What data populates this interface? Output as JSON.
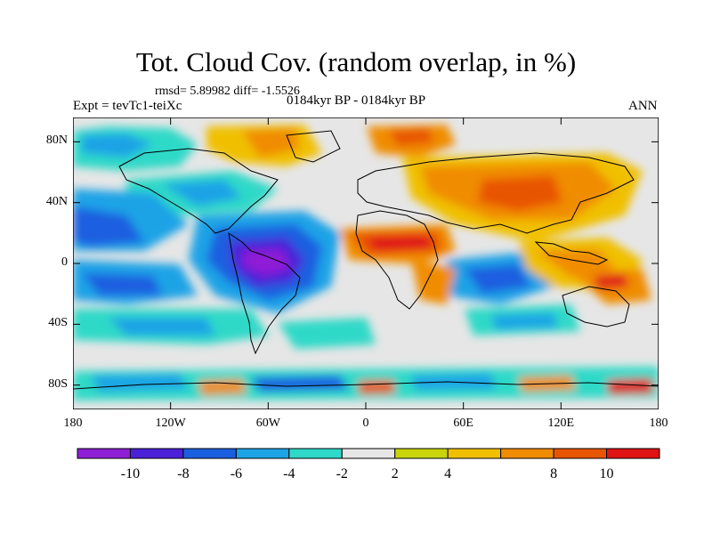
{
  "header": {
    "title": "Tot. Cloud Cov. (random overlap, in %)",
    "stats": "rmsd= 5.89982 diff= -1.5526",
    "experiment": "Expt = tevTc1-teiXc",
    "period": "0184kyr BP - 0184kyr BP",
    "season": "ANN"
  },
  "axes": {
    "y_ticks": [
      {
        "label": "80N",
        "lat": 75
      },
      {
        "label": "40N",
        "lat": 37.5
      },
      {
        "label": "0",
        "lat": 0
      },
      {
        "label": "40S",
        "lat": -37.5
      },
      {
        "label": "80S",
        "lat": -75
      }
    ],
    "x_ticks": [
      {
        "label": "180",
        "lon": -180
      },
      {
        "label": "120W",
        "lon": -120
      },
      {
        "label": "60W",
        "lon": -60
      },
      {
        "label": "0",
        "lon": 0
      },
      {
        "label": "60E",
        "lon": 60
      },
      {
        "label": "120E",
        "lon": 120
      },
      {
        "label": "180",
        "lon": 180
      }
    ]
  },
  "colorbar": {
    "colors": [
      "#8f1fd6",
      "#4a20d8",
      "#1b5fe0",
      "#1da3e6",
      "#2fd9c8",
      "#e6e6e6",
      "#c9d40a",
      "#f0c000",
      "#f08c00",
      "#e85500",
      "#e01414"
    ],
    "labels": [
      "-10",
      "-8",
      "-6",
      "-4",
      "-2",
      "2",
      "4",
      "8",
      "10"
    ]
  },
  "chart_data": {
    "type": "heatmap",
    "variable": "Tot. Cloud Cov. (random overlap, in %)",
    "projection": "cylindrical equidistant",
    "lon_range": [
      -180,
      180
    ],
    "lat_range": [
      -90,
      90
    ],
    "levels": [
      -10,
      -8,
      -6,
      -4,
      -2,
      2,
      4,
      8,
      10
    ],
    "anomaly_regions": [
      {
        "lon": [
          -40,
          30
        ],
        "lat": [
          5,
          25
        ],
        "value": 10
      },
      {
        "lon": [
          60,
          110
        ],
        "lat": [
          25,
          50
        ],
        "value": 6
      },
      {
        "lon": [
          -100,
          -40
        ],
        "lat": [
          -15,
          15
        ],
        "value": -10
      },
      {
        "lon": [
          -180,
          -120
        ],
        "lat": [
          15,
          30
        ],
        "value": -6
      },
      {
        "lon": [
          90,
          150
        ],
        "lat": [
          -20,
          0
        ],
        "value": 6
      },
      {
        "lon": [
          -60,
          0
        ],
        "lat": [
          -50,
          -30
        ],
        "value": -4
      },
      {
        "lon": [
          -180,
          180
        ],
        "lat": [
          -70,
          -55
        ],
        "value": 0
      },
      {
        "lon": [
          130,
          160
        ],
        "lat": [
          -10,
          -5
        ],
        "value": 10
      }
    ]
  }
}
